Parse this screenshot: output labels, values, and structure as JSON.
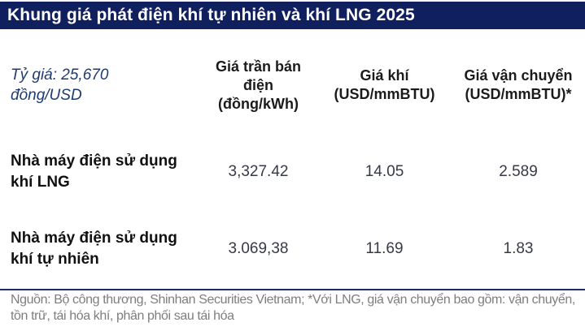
{
  "title": "Khung giá phát điện khí tự nhiên và khí LNG 2025",
  "table": {
    "corner_note": "Tỷ giá: 25,670 đồng/USD",
    "columns": [
      {
        "label": "Giá trần bán điện",
        "unit": "(đồng/kWh)"
      },
      {
        "label": "Giá khí",
        "unit": "(USD/mmBTU)"
      },
      {
        "label": "Giá vận chuyển",
        "unit": "(USD/mmBTU)*"
      }
    ],
    "rows": [
      {
        "label": "Nhà máy điện sử dụng khí LNG",
        "values": [
          "3,327.42",
          "14.05",
          "2.589"
        ]
      },
      {
        "label": "Nhà máy điện sử dụng khí tự nhiên",
        "values": [
          "3.069,38",
          "11.69",
          "1.83"
        ]
      }
    ]
  },
  "footer": {
    "source": "Nguồn: Bộ công thương, Shinhan Securities Vietnam; *Với LNG, giá vận chuyển bao gồm: vận chuyển, tồn trữ, tái hóa khí, phân phối sau tái hóa"
  },
  "colors": {
    "title_bar_bg": "#101f5e",
    "title_text": "#ffffff",
    "corner_note_text": "#1f3a70",
    "divider": "#1b2e6a",
    "source_text": "#7e7e82"
  },
  "chart_data": {
    "type": "table",
    "title": "Khung giá phát điện khí tự nhiên và khí LNG 2025",
    "note": "Tỷ giá: 25,670 đồng/USD",
    "columns": [
      "",
      "Giá trần bán điện (đồng/kWh)",
      "Giá khí (USD/mmBTU)",
      "Giá vận chuyển (USD/mmBTU)*"
    ],
    "rows": [
      [
        "Nhà máy điện sử dụng khí LNG",
        "3,327.42",
        "14.05",
        "2.589"
      ],
      [
        "Nhà máy điện sử dụng khí tự nhiên",
        "3.069,38",
        "11.69",
        "1.83"
      ]
    ],
    "numeric_values": {
      "exchange_rate_vnd_per_usd": 25670,
      "lng_plant": {
        "ceiling_price_vnd_kwh": 3327.42,
        "gas_price_usd_mmbtu": 14.05,
        "transport_usd_mmbtu": 2.589
      },
      "natural_gas_plant": {
        "ceiling_price_vnd_kwh": 3069.38,
        "gas_price_usd_mmbtu": 11.69,
        "transport_usd_mmbtu": 1.83
      }
    },
    "source": "Nguồn: Bộ công thương, Shinhan Securities Vietnam; *Với LNG, giá vận chuyển bao gồm: vận chuyển, tồn trữ, tái hóa khí, phân phối sau tái hóa"
  }
}
